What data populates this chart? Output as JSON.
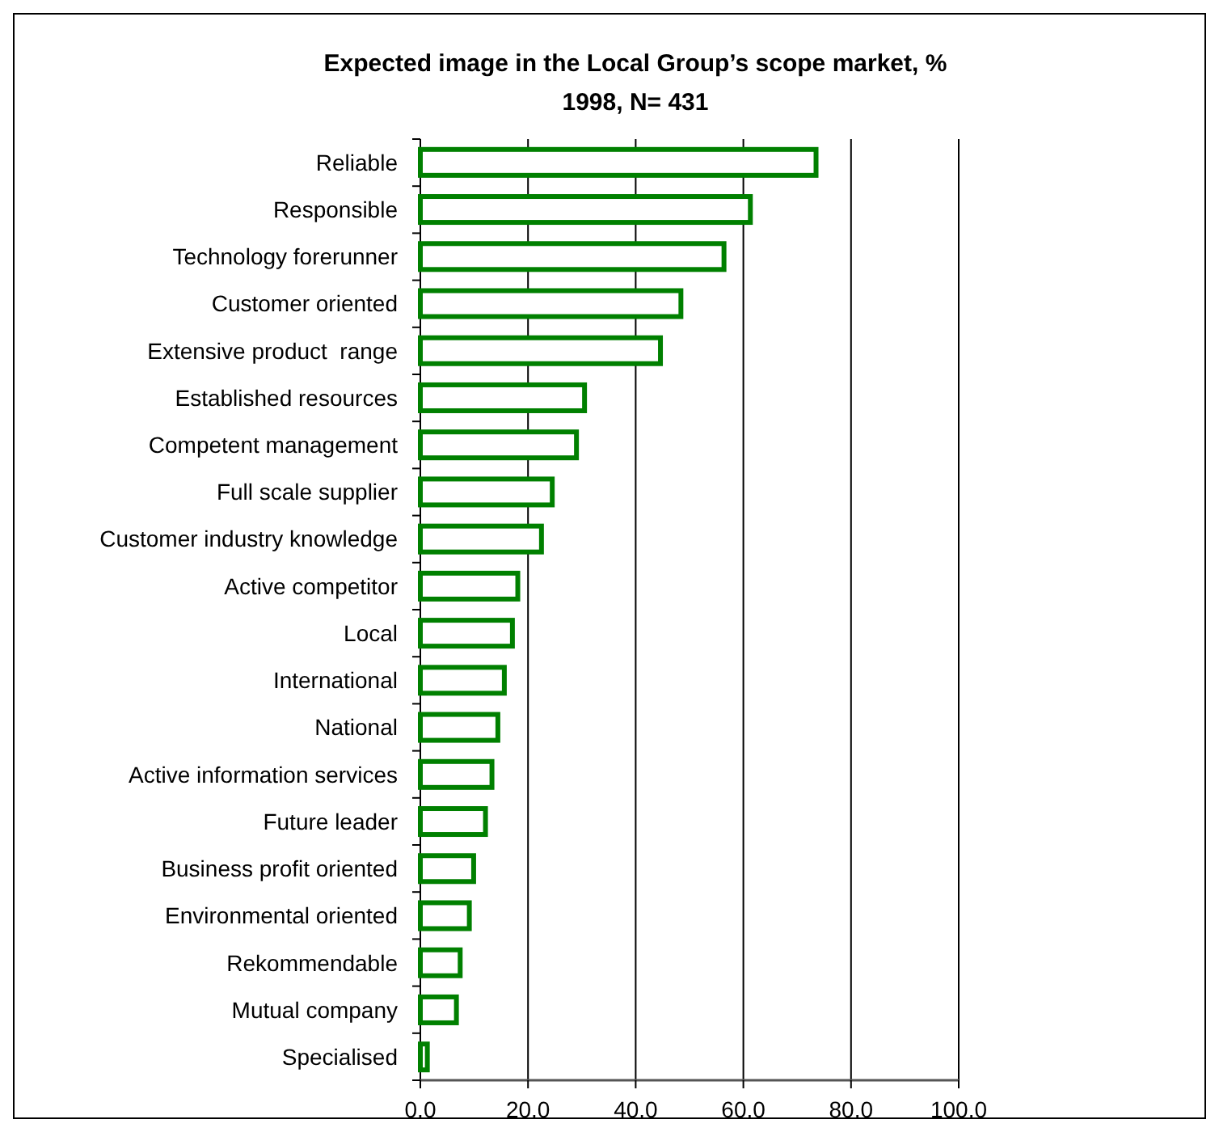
{
  "chart_data": {
    "type": "bar",
    "orientation": "horizontal",
    "title": "Expected image in the Local Group’s scope market, %",
    "subtitle": "1998, N= 431",
    "categories": [
      "Reliable",
      "Responsible",
      "Technology forerunner",
      "Customer oriented",
      "Extensive product  range",
      "Established resources",
      "Competent management",
      "Full scale supplier",
      "Customer industry knowledge",
      "Active competitor",
      "Local",
      "International",
      "National",
      "Active information services",
      "Future leader",
      "Business profit oriented",
      "Environmental oriented",
      "Rekommendable",
      "Mutual company",
      "Specialised"
    ],
    "values": [
      73.5,
      61.3,
      56.4,
      48.4,
      44.6,
      30.5,
      29,
      24.5,
      22.5,
      18.1,
      17.1,
      15.6,
      14.4,
      13.3,
      12.1,
      9.9,
      9.1,
      7.4,
      6.7,
      1.3
    ],
    "color": "#008000",
    "xlim": [
      0,
      100
    ],
    "xticks": [
      {
        "value": 0,
        "label": "0.0"
      },
      {
        "value": 20,
        "label": "20.0"
      },
      {
        "value": 40,
        "label": "40.0"
      },
      {
        "value": 60,
        "label": "60.0"
      },
      {
        "value": 80,
        "label": "80.0"
      },
      {
        "value": 100,
        "label": "100.0"
      }
    ],
    "grid": "x"
  }
}
